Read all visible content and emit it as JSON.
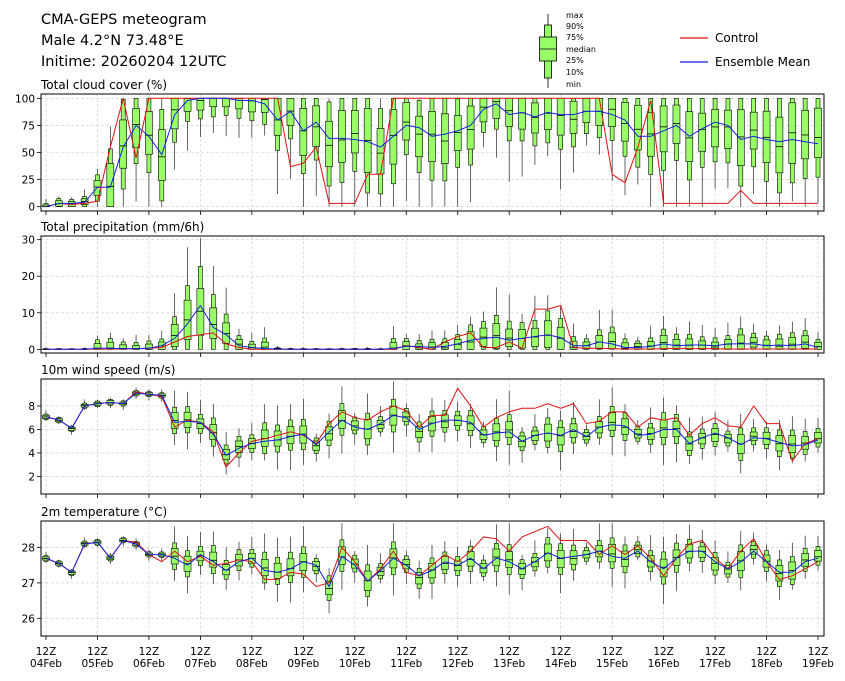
{
  "header": {
    "title_line1": "CMA-GEPS meteogram",
    "title_line2": "Male 4.2°N 73.48°E",
    "title_line3": "Initime: 20260204 12UTC"
  },
  "legend": {
    "box_labels": [
      "max",
      "90%",
      "75%",
      "median",
      "25%",
      "10%",
      "min"
    ],
    "control_label": "Control",
    "mean_label": "Ensemble Mean",
    "control_color": "#dd1111",
    "mean_color": "#1122dd",
    "box_fill": "#99ff66"
  },
  "x_axis": {
    "tick_hours": [
      "12Z",
      "12Z",
      "12Z",
      "12Z",
      "12Z",
      "12Z",
      "12Z",
      "12Z",
      "12Z",
      "12Z",
      "12Z",
      "12Z",
      "12Z",
      "12Z",
      "12Z",
      "12Z"
    ],
    "tick_dates": [
      "04Feb",
      "05Feb",
      "06Feb",
      "07Feb",
      "08Feb",
      "09Feb",
      "10Feb",
      "11Feb",
      "12Feb",
      "13Feb",
      "14Feb",
      "15Feb",
      "16Feb",
      "17Feb",
      "18Feb",
      "19Feb"
    ],
    "step_hours": 6,
    "n_steps": 61
  },
  "chart_data": [
    {
      "type": "box",
      "title": "Total cloud cover (%)",
      "ylim": [
        -4,
        104
      ],
      "yticks": [
        0,
        25,
        50,
        75,
        100
      ],
      "control": [
        0,
        3,
        2,
        3,
        5,
        55,
        100,
        45,
        100,
        100,
        100,
        100,
        100,
        100,
        100,
        100,
        100,
        100,
        100,
        37,
        40,
        55,
        3,
        3,
        3,
        30,
        30,
        100,
        100,
        100,
        100,
        100,
        100,
        100,
        100,
        100,
        100,
        100,
        100,
        100,
        100,
        100,
        100,
        100,
        30,
        22,
        55,
        98,
        3,
        3,
        3,
        3,
        3,
        3,
        15,
        3,
        3,
        3,
        3,
        3,
        3
      ],
      "mean": [
        0,
        3,
        3,
        4,
        18,
        18,
        55,
        75,
        65,
        48,
        85,
        98,
        100,
        100,
        100,
        98,
        98,
        95,
        80,
        88,
        70,
        78,
        63,
        63,
        62,
        60,
        55,
        65,
        75,
        73,
        65,
        67,
        70,
        75,
        90,
        95,
        85,
        87,
        83,
        87,
        85,
        85,
        88,
        88,
        85,
        80,
        65,
        65,
        70,
        75,
        65,
        72,
        78,
        75,
        62,
        65,
        62,
        60,
        62,
        60,
        58
      ]
    },
    {
      "type": "box",
      "title": "Total precipitation (mm/6h)",
      "ylim": [
        -1,
        31
      ],
      "yticks": [
        0,
        10,
        20,
        30
      ],
      "control": [
        0,
        0,
        0,
        0,
        0.1,
        0.1,
        0.1,
        0.2,
        0.3,
        0.5,
        2,
        3.5,
        4,
        4.5,
        1.5,
        0.5,
        0,
        0,
        0,
        0,
        0,
        0,
        0,
        0,
        0,
        0,
        0,
        0,
        1,
        0.5,
        0,
        2,
        3.5,
        4.5,
        0.5,
        0.5,
        2,
        0.3,
        11,
        11,
        12,
        0.5,
        0.3,
        0.3,
        0.2,
        0.1,
        0.1,
        0.1,
        0.2,
        0.3,
        0.2,
        0.2,
        0.2,
        0.1,
        0.1,
        0.1,
        0.1,
        0.1,
        0.1,
        0.1,
        0.1
      ],
      "mean": [
        0,
        0,
        0,
        0,
        0.3,
        0.3,
        0.2,
        0.2,
        0.3,
        1,
        3,
        7,
        12,
        6,
        4,
        1,
        0.5,
        0.2,
        0.1,
        0,
        0,
        0,
        0,
        0,
        0,
        0,
        0,
        0.3,
        0.8,
        0.8,
        0.5,
        0.8,
        1.5,
        2.5,
        3,
        3.3,
        2.5,
        3,
        3.5,
        4,
        3.2,
        1,
        1,
        2,
        1.5,
        0.5,
        0.5,
        0.8,
        1.5,
        1,
        1.2,
        1.2,
        1,
        1.5,
        1.5,
        1.5,
        1,
        1.2,
        1,
        1.5,
        0.5
      ]
    },
    {
      "type": "box",
      "title": "10m wind speed (m/s)",
      "ylim": [
        0.5,
        10.3
      ],
      "yticks": [
        2,
        4,
        6,
        8
      ],
      "control": [
        7.1,
        6.8,
        6.1,
        8,
        8.2,
        8.3,
        8.2,
        9.2,
        9,
        8.8,
        6.2,
        6.8,
        6.6,
        5.8,
        2.8,
        4,
        5,
        5.2,
        5.5,
        5.8,
        5.5,
        4.8,
        6.5,
        7.5,
        7,
        6.8,
        7.5,
        8,
        7.6,
        6.2,
        7.2,
        7.2,
        9.5,
        8,
        6.2,
        7,
        7.5,
        7.8,
        7.8,
        8.2,
        7.8,
        8.2,
        6.5,
        6.7,
        7.5,
        7.5,
        6.2,
        7,
        6.8,
        7,
        5.5,
        6.5,
        7,
        6.3,
        6.2,
        8,
        6.5,
        6.5,
        3.3,
        4.8,
        5.2
      ],
      "mean": [
        7.1,
        6.8,
        6.1,
        8,
        8.2,
        8.3,
        8.2,
        9.1,
        9,
        8.9,
        6.6,
        6.7,
        6.6,
        5.6,
        3.8,
        4.4,
        4.8,
        5,
        5.1,
        5.4,
        5.6,
        4.7,
        5.8,
        6.8,
        6.2,
        6,
        6.5,
        7.2,
        7,
        6.0,
        6.5,
        6.8,
        6.8,
        6.6,
        5.5,
        5.7,
        5.8,
        5,
        5.5,
        5.7,
        5.5,
        6,
        5.4,
        6.2,
        6.4,
        6.3,
        5.5,
        5.6,
        6,
        6,
        4.8,
        5.3,
        5.7,
        5.3,
        4.7,
        5.3,
        5.2,
        4.9,
        4.6,
        4.7,
        5.1
      ]
    },
    {
      "type": "box",
      "title": "2m temperature (°C)",
      "ylim": [
        25.5,
        28.75
      ],
      "yticks": [
        26,
        27,
        28
      ],
      "control": [
        27.7,
        27.55,
        27.3,
        28.1,
        28.15,
        27.7,
        28.2,
        28.15,
        27.8,
        27.6,
        27.9,
        27.6,
        27.75,
        27.5,
        27.55,
        27.65,
        27.6,
        27.1,
        27.1,
        27.3,
        27.25,
        26.9,
        27,
        28,
        27.6,
        27.05,
        27.4,
        27.9,
        27.3,
        27.2,
        27.5,
        27.8,
        27.6,
        27.9,
        28.3,
        28.25,
        27.9,
        28.3,
        28.45,
        28.6,
        28.2,
        28.2,
        28.2,
        27.8,
        28.05,
        27.8,
        28.05,
        27.7,
        27.2,
        27.7,
        28.1,
        28.2,
        27.7,
        27.4,
        27.9,
        28.25,
        27.6,
        27.1,
        27.2,
        27.4,
        27.6
      ],
      "mean": [
        27.7,
        27.55,
        27.3,
        28.1,
        28.15,
        27.7,
        28.2,
        28.1,
        27.8,
        27.8,
        27.7,
        27.5,
        27.8,
        27.6,
        27.35,
        27.6,
        27.7,
        27.35,
        27.3,
        27.4,
        27.6,
        27.5,
        26.9,
        27.75,
        27.5,
        27.05,
        27.35,
        27.7,
        27.5,
        27.2,
        27.35,
        27.6,
        27.5,
        27.7,
        27.4,
        27.7,
        27.6,
        27.4,
        27.6,
        27.85,
        27.7,
        27.75,
        27.8,
        27.9,
        27.75,
        27.7,
        27.9,
        27.6,
        27.4,
        27.7,
        27.9,
        27.9,
        27.6,
        27.4,
        27.6,
        27.9,
        27.6,
        27.3,
        27.3,
        27.6,
        27.7
      ]
    }
  ]
}
